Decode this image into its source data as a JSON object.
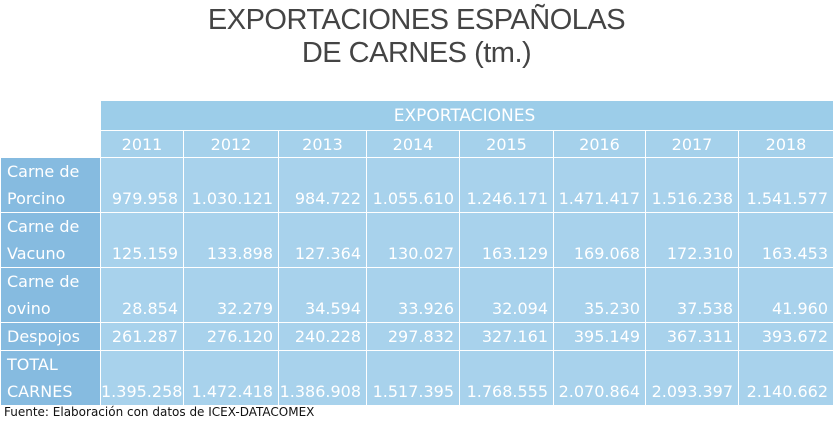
{
  "title": [
    "EXPORTACIONES ESPAÑOLAS",
    "DE CARNES (tm.)"
  ],
  "table": {
    "group_header": "EXPORTACIONES",
    "years": [
      "2011",
      "2012",
      "2013",
      "2014",
      "2015",
      "2016",
      "2017",
      "2018"
    ],
    "rows": [
      {
        "label": [
          "Carne de",
          "Porcino"
        ],
        "values": [
          "979.958",
          "1.030.121",
          "984.722",
          "1.055.610",
          "1.246.171",
          "1.471.417",
          "1.516.238",
          "1.541.577"
        ]
      },
      {
        "label": [
          "Carne de",
          "Vacuno"
        ],
        "values": [
          "125.159",
          "133.898",
          "127.364",
          "130.027",
          "163.129",
          "169.068",
          "172.310",
          "163.453"
        ]
      },
      {
        "label": [
          "Carne de",
          "ovino"
        ],
        "values": [
          "28.854",
          "32.279",
          "34.594",
          "33.926",
          "32.094",
          "35.230",
          "37.538",
          "41.960"
        ]
      },
      {
        "label": [
          "Despojos"
        ],
        "values": [
          "261.287",
          "276.120",
          "240.228",
          "297.832",
          "327.161",
          "395.149",
          "367.311",
          "393.672"
        ]
      },
      {
        "label": [
          "TOTAL",
          "CARNES"
        ],
        "values": [
          "1.395.258",
          "1.472.418",
          "1.386.908",
          "1.517.395",
          "1.768.555",
          "2.070.864",
          "2.093.397",
          "2.140.662"
        ]
      }
    ]
  },
  "source": "Fuente: Elaboración con datos de ICEX-DATACOMEX"
}
